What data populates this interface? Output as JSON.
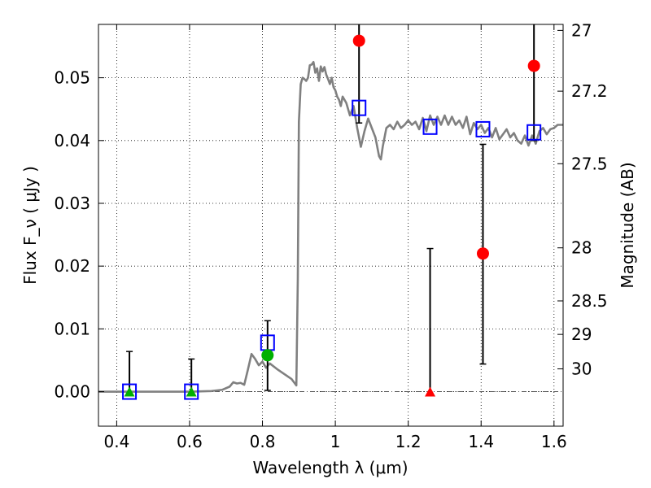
{
  "chart_data": {
    "type": "scatter",
    "xlabel": "Wavelength  λ (μm)",
    "ylabel": "Flux  F_ν  ( μJy )",
    "y2label": "Magnitude (AB)",
    "xlim": [
      0.35,
      1.625
    ],
    "ylim": [
      -0.0055,
      0.0585
    ],
    "grid": true,
    "colors": {
      "model": "#808080",
      "box": "#0000ff",
      "detection_green": "#00b000",
      "detection_red": "#ff0000",
      "errorbar": "#000000",
      "zero_line": "#555555"
    },
    "x_ticks": [
      {
        "v": 0.4,
        "label": "0.4"
      },
      {
        "v": 0.6,
        "label": "0.6"
      },
      {
        "v": 0.8,
        "label": "0.8"
      },
      {
        "v": 1.0,
        "label": "1"
      },
      {
        "v": 1.2,
        "label": "1.2"
      },
      {
        "v": 1.4,
        "label": "1.4"
      },
      {
        "v": 1.6,
        "label": "1.6"
      }
    ],
    "y_ticks": [
      {
        "v": 0.0,
        "label": "0.00"
      },
      {
        "v": 0.01,
        "label": "0.01"
      },
      {
        "v": 0.02,
        "label": "0.02"
      },
      {
        "v": 0.03,
        "label": "0.03"
      },
      {
        "v": 0.04,
        "label": "0.04"
      },
      {
        "v": 0.05,
        "label": "0.05"
      }
    ],
    "mag_ticks": [
      {
        "mag": 27,
        "label": "27"
      },
      {
        "mag": 27.2,
        "label": "27.2"
      },
      {
        "mag": 27.5,
        "label": "27.5"
      },
      {
        "mag": 28,
        "label": "28"
      },
      {
        "mag": 28.5,
        "label": "28.5"
      },
      {
        "mag": 29,
        "label": "29"
      },
      {
        "mag": 30,
        "label": "30"
      }
    ],
    "model_spectrum": {
      "x": [
        0.35,
        0.6,
        0.66,
        0.69,
        0.71,
        0.72,
        0.73,
        0.74,
        0.75,
        0.76,
        0.77,
        0.78,
        0.79,
        0.8,
        0.81,
        0.82,
        0.84,
        0.86,
        0.88,
        0.893,
        0.897,
        0.9,
        0.905,
        0.91,
        0.915,
        0.92,
        0.925,
        0.93,
        0.935,
        0.94,
        0.945,
        0.95,
        0.955,
        0.96,
        0.965,
        0.97,
        0.975,
        0.98,
        0.985,
        0.99,
        0.995,
        1.0,
        1.005,
        1.01,
        1.015,
        1.02,
        1.03,
        1.04,
        1.05,
        1.06,
        1.07,
        1.08,
        1.09,
        1.1,
        1.11,
        1.12,
        1.125,
        1.13,
        1.14,
        1.15,
        1.16,
        1.17,
        1.18,
        1.19,
        1.2,
        1.21,
        1.22,
        1.23,
        1.24,
        1.25,
        1.26,
        1.27,
        1.28,
        1.29,
        1.3,
        1.31,
        1.32,
        1.33,
        1.34,
        1.35,
        1.36,
        1.37,
        1.38,
        1.39,
        1.4,
        1.41,
        1.42,
        1.43,
        1.44,
        1.45,
        1.46,
        1.47,
        1.48,
        1.49,
        1.5,
        1.51,
        1.52,
        1.53,
        1.54,
        1.55,
        1.56,
        1.57,
        1.58,
        1.59,
        1.6,
        1.61,
        1.625
      ],
      "y": [
        0.0,
        0.0,
        0.0001,
        0.0003,
        0.0008,
        0.0015,
        0.0013,
        0.0014,
        0.0011,
        0.0035,
        0.006,
        0.0052,
        0.0042,
        0.0048,
        0.0038,
        0.0045,
        0.0036,
        0.0028,
        0.002,
        0.001,
        0.018,
        0.043,
        0.049,
        0.05,
        0.0498,
        0.0495,
        0.05,
        0.052,
        0.0521,
        0.0525,
        0.0508,
        0.0515,
        0.0495,
        0.0518,
        0.051,
        0.0517,
        0.0505,
        0.0498,
        0.049,
        0.05,
        0.0485,
        0.048,
        0.047,
        0.0465,
        0.0455,
        0.047,
        0.046,
        0.044,
        0.0455,
        0.042,
        0.039,
        0.0415,
        0.0435,
        0.042,
        0.0405,
        0.0375,
        0.037,
        0.039,
        0.042,
        0.0425,
        0.0418,
        0.043,
        0.042,
        0.0425,
        0.0432,
        0.0425,
        0.043,
        0.0418,
        0.0436,
        0.0415,
        0.044,
        0.0425,
        0.0438,
        0.0425,
        0.044,
        0.0425,
        0.0438,
        0.0425,
        0.0432,
        0.042,
        0.0438,
        0.041,
        0.0428,
        0.0418,
        0.0425,
        0.0412,
        0.042,
        0.0405,
        0.042,
        0.0402,
        0.041,
        0.0418,
        0.0405,
        0.0412,
        0.04,
        0.0395,
        0.0408,
        0.0392,
        0.0408,
        0.0395,
        0.0415,
        0.042,
        0.041,
        0.0418,
        0.042,
        0.0425,
        0.0425
      ]
    },
    "model_photometry": {
      "x": [
        0.435,
        0.605,
        0.814,
        1.065,
        1.26,
        1.405,
        1.545
      ],
      "y": [
        0.0,
        0.0,
        0.0078,
        0.0452,
        0.0422,
        0.0418,
        0.0413
      ]
    },
    "observations": [
      {
        "x": 0.435,
        "y": 0.0,
        "yerr_low": 0.0,
        "yerr_high": 0.0064,
        "marker": "triangle",
        "color": "#00b000"
      },
      {
        "x": 0.605,
        "y": 0.0,
        "yerr_low": 0.0,
        "yerr_high": 0.0052,
        "marker": "triangle",
        "color": "#00b000"
      },
      {
        "x": 0.814,
        "y": 0.0058,
        "yerr_low": 0.0056,
        "yerr_high": 0.0055,
        "marker": "circle",
        "color": "#00b000"
      },
      {
        "x": 1.065,
        "y": 0.0559,
        "yerr_low": 0.0131,
        "yerr_high": 0.008,
        "marker": "circle",
        "color": "#ff0000"
      },
      {
        "x": 1.26,
        "y": 0.0,
        "yerr_low": 0.0,
        "yerr_high": 0.0228,
        "marker": "triangle",
        "color": "#ff0000"
      },
      {
        "x": 1.405,
        "y": 0.022,
        "yerr_low": 0.0176,
        "yerr_high": 0.0174,
        "marker": "circle",
        "color": "#ff0000"
      },
      {
        "x": 1.545,
        "y": 0.0519,
        "yerr_low": 0.0119,
        "yerr_high": 0.008,
        "marker": "circle",
        "color": "#ff0000"
      }
    ]
  }
}
